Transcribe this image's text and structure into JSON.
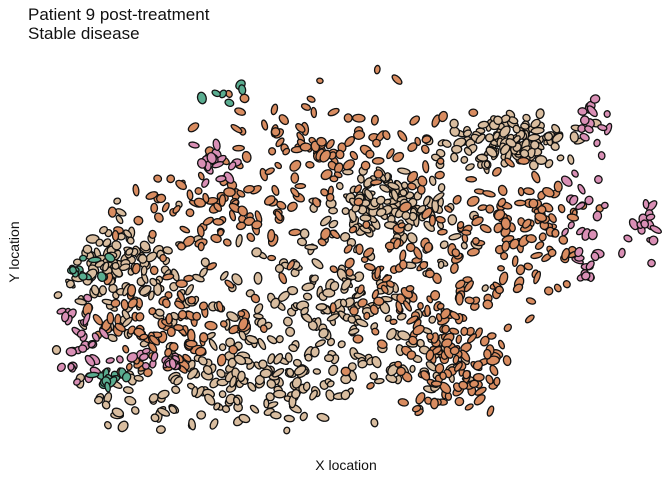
{
  "chart_data": {
    "type": "scatter",
    "title": "Patient 9 post-treatment",
    "subtitle": "Stable disease",
    "xlabel": "X location",
    "ylabel": "Y location",
    "grid": false,
    "legend": "none",
    "region_outline": [
      [
        0.0,
        0.0
      ],
      [
        0.79,
        0.0
      ],
      [
        0.9,
        0.12
      ],
      [
        1.0,
        0.58
      ],
      [
        1.0,
        1.0
      ],
      [
        0.33,
        1.0
      ],
      [
        0.2,
        0.86
      ],
      [
        0.0,
        0.38
      ]
    ],
    "series": [
      {
        "color": "#d9bd9f",
        "clusters": [
          [
            0.35,
            0.35,
            0.22,
            0.18
          ],
          [
            0.3,
            0.12,
            0.2,
            0.08
          ],
          [
            0.55,
            0.3,
            0.15,
            0.15
          ],
          [
            0.6,
            0.62,
            0.08,
            0.06
          ],
          [
            0.82,
            0.8,
            0.08,
            0.05
          ],
          [
            0.1,
            0.45,
            0.08,
            0.1
          ]
        ],
        "count": 780
      },
      {
        "color": "#d98c60",
        "clusters": [
          [
            0.65,
            0.45,
            0.12,
            0.15
          ],
          [
            0.72,
            0.2,
            0.08,
            0.1
          ],
          [
            0.5,
            0.8,
            0.15,
            0.1
          ],
          [
            0.85,
            0.55,
            0.08,
            0.12
          ],
          [
            0.3,
            0.62,
            0.15,
            0.1
          ],
          [
            0.2,
            0.3,
            0.1,
            0.1
          ]
        ],
        "count": 600
      },
      {
        "color": "#d98fb5",
        "clusters": [
          [
            0.04,
            0.3,
            0.04,
            0.06
          ],
          [
            0.06,
            0.2,
            0.04,
            0.05
          ],
          [
            0.97,
            0.85,
            0.03,
            0.07
          ],
          [
            0.95,
            0.63,
            0.04,
            0.08
          ],
          [
            0.22,
            0.97,
            0.04,
            0.03
          ],
          [
            0.96,
            0.45,
            0.03,
            0.04
          ],
          [
            0.29,
            0.75,
            0.03,
            0.04
          ],
          [
            1.06,
            0.55,
            0.03,
            0.05
          ],
          [
            0.18,
            0.22,
            0.03,
            0.03
          ]
        ],
        "count": 140
      },
      {
        "color": "#5aad90",
        "clusters": [
          [
            0.06,
            0.45,
            0.03,
            0.03
          ],
          [
            0.28,
            0.94,
            0.05,
            0.025
          ],
          [
            0.1,
            0.15,
            0.025,
            0.02
          ]
        ],
        "count": 38
      }
    ]
  }
}
